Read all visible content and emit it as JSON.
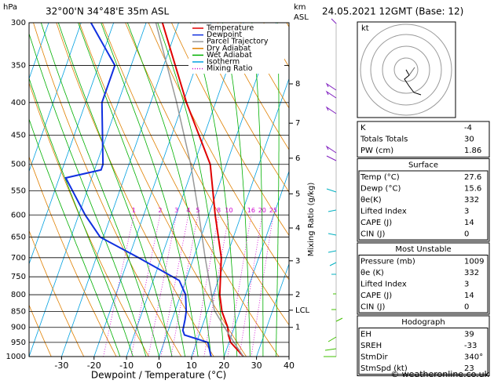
{
  "chart_data": {
    "type": "skew-t",
    "title": "32°00'N  34°48'E  35m  ASL",
    "date": "24.05.2021  12GMT  (Base: 12)",
    "y_label": "hPa",
    "x_label": "Dewpoint / Temperature (°C)",
    "km_label": "km",
    "asl_label": "ASL",
    "mixing_ratio_axis_label": "Mixing Ratio (g/kg)",
    "xlim": [
      -40,
      40
    ],
    "xticks": [
      -30,
      -20,
      -10,
      0,
      10,
      20,
      30,
      40
    ],
    "ylim": [
      1000,
      300
    ],
    "yticks": [
      300,
      350,
      400,
      450,
      500,
      550,
      600,
      650,
      700,
      750,
      800,
      850,
      900,
      950,
      1000
    ],
    "km_ticks": [
      {
        "value": 900,
        "label": "1"
      },
      {
        "value": 800,
        "label": "2"
      },
      {
        "value": 708,
        "label": "3"
      },
      {
        "value": 629,
        "label": "4"
      },
      {
        "value": 556,
        "label": "5"
      },
      {
        "value": 489,
        "label": "6"
      },
      {
        "value": 431,
        "label": "7"
      },
      {
        "value": 374,
        "label": "8"
      },
      {
        "value": 846,
        "label": "LCL"
      }
    ],
    "mixing_ratios": [
      1,
      2,
      3,
      4,
      5,
      8,
      10,
      16,
      20,
      25
    ],
    "series": [
      {
        "name": "Temperature",
        "color": "#e00000",
        "pressure": [
          1000,
          950,
          925,
          900,
          850,
          800,
          700,
          600,
          500,
          400,
          300
        ],
        "values": [
          26,
          20.5,
          19,
          18,
          14.5,
          12,
          8.5,
          2,
          -5,
          -19,
          -35
        ]
      },
      {
        "name": "Dewpoint",
        "color": "#1030e0",
        "pressure": [
          1000,
          950,
          925,
          910,
          875,
          850,
          800,
          760,
          700,
          650,
          600,
          525,
          510,
          500,
          400,
          350,
          300
        ],
        "values": [
          16,
          13.5,
          5.5,
          4.5,
          4,
          3.5,
          1.5,
          -2,
          -17,
          -31,
          -38,
          -48,
          -38,
          -38,
          -45,
          -45,
          -57
        ]
      },
      {
        "name": "Parcel Trajectory",
        "color": "#999999",
        "pressure": [
          1000,
          950,
          900,
          846,
          800,
          700,
          600,
          500,
          400,
          300
        ],
        "values": [
          26,
          21.5,
          17,
          12,
          9.5,
          3.5,
          -3,
          -11,
          -22,
          -37
        ]
      }
    ],
    "background_lines": [
      {
        "name": "Dry Adiabat",
        "color": "#e08000"
      },
      {
        "name": "Wet Adiabat",
        "color": "#00b000"
      },
      {
        "name": "Isotherm",
        "color": "#00a0e0"
      },
      {
        "name": "Mixing Ratio",
        "color": "#d000d0"
      }
    ],
    "hodograph_label": "kt"
  },
  "indices": {
    "top": [
      [
        "K",
        "-4"
      ],
      [
        "Totals Totals",
        "30"
      ],
      [
        "PW (cm)",
        "1.86"
      ]
    ],
    "sections": [
      {
        "title": "Surface",
        "rows": [
          [
            "Temp (°C)",
            "27.6"
          ],
          [
            "Dewp (°C)",
            "15.6"
          ],
          [
            "θe(K)",
            "332"
          ],
          [
            "Lifted Index",
            "3"
          ],
          [
            "CAPE (J)",
            "14"
          ],
          [
            "CIN (J)",
            "0"
          ]
        ]
      },
      {
        "title": "Most Unstable",
        "rows": [
          [
            "Pressure (mb)",
            "1009"
          ],
          [
            "θe (K)",
            "332"
          ],
          [
            "Lifted Index",
            "3"
          ],
          [
            "CAPE (J)",
            "14"
          ],
          [
            "CIN (J)",
            "0"
          ]
        ]
      },
      {
        "title": "Hodograph",
        "rows": [
          [
            "EH",
            "39"
          ],
          [
            "SREH",
            "-33"
          ],
          [
            "StmDir",
            "340°"
          ],
          [
            "StmSpd (kt)",
            "23"
          ]
        ]
      }
    ]
  },
  "footer": "© weatheronline.co.uk"
}
